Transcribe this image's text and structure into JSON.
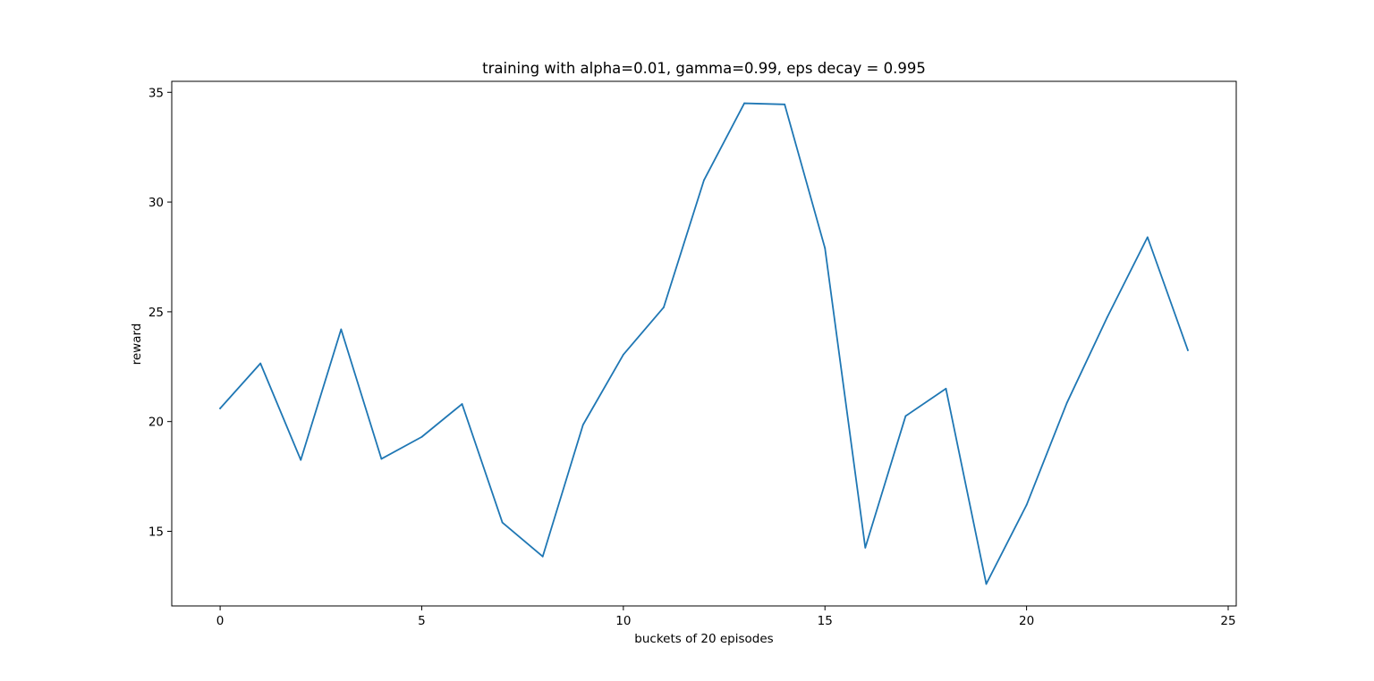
{
  "chart_data": {
    "type": "line",
    "title": "training with alpha=0.01, gamma=0.99, eps decay = 0.995",
    "xlabel": "buckets of 20 episodes",
    "ylabel": "reward",
    "xlim": [
      -1.2,
      25.2
    ],
    "ylim": [
      11.6,
      35.5
    ],
    "xticks": [
      0,
      5,
      10,
      15,
      20,
      25
    ],
    "yticks": [
      15,
      20,
      25,
      30,
      35
    ],
    "grid": false,
    "legend": "none",
    "series": [
      {
        "color": "#1f77b4",
        "x": [
          0,
          1,
          2,
          3,
          4,
          5,
          6,
          7,
          8,
          9,
          10,
          11,
          12,
          13,
          14,
          15,
          16,
          17,
          18,
          19,
          20,
          21,
          22,
          23,
          24
        ],
        "y": [
          20.6,
          22.65,
          18.25,
          24.2,
          18.3,
          19.3,
          20.8,
          15.4,
          13.85,
          19.85,
          23.05,
          25.2,
          31.0,
          34.5,
          34.45,
          27.9,
          14.25,
          20.25,
          21.5,
          12.6,
          16.2,
          20.85,
          24.75,
          28.4,
          23.25
        ]
      }
    ]
  }
}
